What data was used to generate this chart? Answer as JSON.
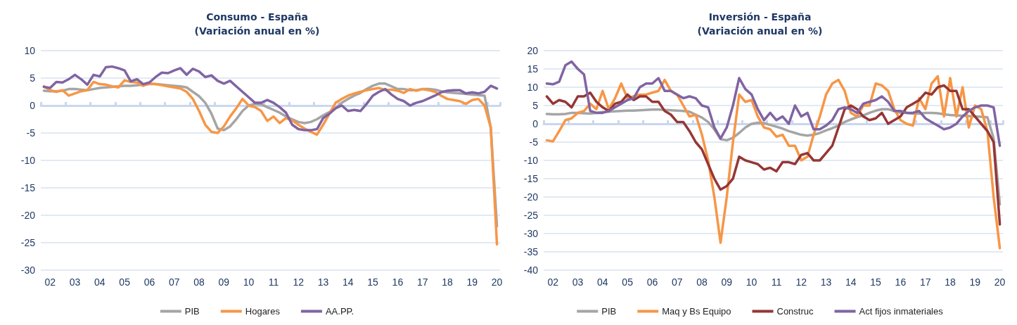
{
  "chart_data": [
    {
      "type": "line",
      "title": "Consumo - España",
      "subtitle": "(Variación anual en %)",
      "categories": [
        null,
        "02",
        null,
        null,
        null,
        "03",
        null,
        null,
        null,
        "04",
        null,
        null,
        null,
        "05",
        null,
        null,
        null,
        "06",
        null,
        null,
        null,
        "07",
        null,
        null,
        null,
        "08",
        null,
        null,
        null,
        "09",
        null,
        null,
        null,
        "10",
        null,
        null,
        null,
        "11",
        null,
        null,
        null,
        "12",
        null,
        null,
        null,
        "13",
        null,
        null,
        null,
        "14",
        null,
        null,
        null,
        "15",
        null,
        null,
        null,
        "16",
        null,
        null,
        null,
        "17",
        null,
        null,
        null,
        "18",
        null,
        null,
        null,
        "19",
        null,
        null,
        null,
        "20"
      ],
      "series": [
        {
          "name": "PIB",
          "color": "#a5a5a5",
          "values": [
            2.7,
            2.6,
            2.6,
            2.7,
            3.0,
            3.0,
            2.9,
            2.8,
            3.0,
            3.2,
            3.3,
            3.4,
            3.5,
            3.6,
            3.6,
            3.7,
            3.8,
            3.9,
            3.9,
            3.8,
            3.7,
            3.6,
            3.5,
            3.3,
            2.5,
            1.7,
            0.5,
            -1.5,
            -4.2,
            -4.5,
            -3.8,
            -2.5,
            -1.0,
            0,
            0.3,
            0.2,
            -0.3,
            -0.8,
            -1.3,
            -2.0,
            -2.5,
            -3.0,
            -3.2,
            -3.0,
            -2.5,
            -1.8,
            -1.2,
            -0.5,
            0.5,
            1.2,
            1.8,
            2.3,
            3.0,
            3.6,
            4.0,
            4.0,
            3.5,
            3.0,
            3.0,
            2.8,
            2.8,
            3.0,
            3.0,
            2.9,
            2.6,
            2.4,
            2.3,
            2.2,
            2.1,
            2.0,
            1.9,
            1.8,
            -4,
            -22
          ]
        },
        {
          "name": "Hogares",
          "color": "#f79646",
          "values": [
            3.5,
            2.8,
            2.5,
            2.8,
            1.8,
            2.2,
            2.6,
            2.8,
            4.3,
            3.9,
            3.8,
            3.5,
            3.3,
            4.6,
            4.3,
            4.2,
            3.6,
            4.0,
            3.9,
            3.7,
            3.5,
            3.3,
            3.1,
            2.5,
            1.2,
            -1.0,
            -3.5,
            -4.8,
            -5.0,
            -3.8,
            -2.0,
            -0.5,
            1.2,
            0,
            -0.3,
            -1.0,
            -2.8,
            -2.0,
            -3.2,
            -2.3,
            -2.7,
            -3.5,
            -4.2,
            -4.8,
            -5.3,
            -3.5,
            -1.5,
            0.5,
            1.2,
            1.8,
            2.2,
            2.5,
            2.8,
            3.0,
            3.2,
            2.8,
            2.9,
            2.7,
            2.3,
            3.0,
            2.7,
            3.0,
            2.8,
            2.5,
            1.8,
            1.2,
            1.0,
            0.8,
            0.3,
            1.0,
            1.2,
            0,
            -4,
            -25.3
          ]
        },
        {
          "name": "AA.PP.",
          "color": "#8064a2",
          "values": [
            3.4,
            3.2,
            4.3,
            4.2,
            4.8,
            5.6,
            4.8,
            3.8,
            5.6,
            5.3,
            7.0,
            7.1,
            6.8,
            6.4,
            4.4,
            4.8,
            3.9,
            4.2,
            5.2,
            6.0,
            5.9,
            6.4,
            6.8,
            5.6,
            6.7,
            6.2,
            5.2,
            5.5,
            4.5,
            4.0,
            4.5,
            3.5,
            2.5,
            1.5,
            0.5,
            0.5,
            1.0,
            0.5,
            -0.3,
            -1.3,
            -3.5,
            -4.3,
            -4.5,
            -4.5,
            -4.3,
            -2.3,
            -1.5,
            -0.5,
            0,
            -1.0,
            -0.8,
            -1.0,
            0.3,
            1.8,
            2.5,
            3.0,
            2.0,
            1.2,
            0.8,
            0,
            0.5,
            0.8,
            1.3,
            1.8,
            2.4,
            2.7,
            2.8,
            2.8,
            2.2,
            2.4,
            2.2,
            2.5,
            3.6,
            3.1
          ]
        }
      ],
      "ylim": [
        -30,
        10
      ],
      "yticks": [
        -30,
        -25,
        -20,
        -15,
        -10,
        -5,
        0,
        5,
        10
      ],
      "grid": "y",
      "legend": "bottom",
      "marker": "none",
      "line_style": "solid"
    },
    {
      "type": "line",
      "title": "Inversión - España",
      "subtitle": "(Variación anual en %)",
      "categories": [
        null,
        "02",
        null,
        null,
        null,
        "03",
        null,
        null,
        null,
        "04",
        null,
        null,
        null,
        "05",
        null,
        null,
        null,
        "06",
        null,
        null,
        null,
        "07",
        null,
        null,
        null,
        "08",
        null,
        null,
        null,
        "09",
        null,
        null,
        null,
        "10",
        null,
        null,
        null,
        "11",
        null,
        null,
        null,
        "12",
        null,
        null,
        null,
        "13",
        null,
        null,
        null,
        "14",
        null,
        null,
        null,
        "15",
        null,
        null,
        null,
        "16",
        null,
        null,
        null,
        "17",
        null,
        null,
        null,
        "18",
        null,
        null,
        null,
        "19",
        null,
        null,
        null,
        "20"
      ],
      "series": [
        {
          "name": "PIB",
          "color": "#a5a5a5",
          "values": [
            2.7,
            2.6,
            2.6,
            2.7,
            3.0,
            3.0,
            2.9,
            2.8,
            3.0,
            3.2,
            3.3,
            3.4,
            3.5,
            3.6,
            3.6,
            3.7,
            3.8,
            3.9,
            3.9,
            3.8,
            3.7,
            3.6,
            3.5,
            3.3,
            2.5,
            1.7,
            0.5,
            -1.5,
            -4.2,
            -4.5,
            -3.8,
            -2.5,
            -1.0,
            0,
            0.3,
            0.2,
            -0.3,
            -0.8,
            -1.3,
            -2.0,
            -2.5,
            -3.0,
            -3.2,
            -3.0,
            -2.5,
            -1.8,
            -1.2,
            -0.5,
            0.5,
            1.2,
            1.8,
            2.3,
            3.0,
            3.6,
            4.0,
            4.0,
            3.5,
            3.0,
            3.0,
            2.8,
            2.8,
            3.0,
            3.0,
            2.9,
            2.6,
            2.4,
            2.3,
            2.2,
            2.1,
            2.0,
            1.9,
            1.8,
            -4,
            -22
          ]
        },
        {
          "name": "Maq y Bs Equipo",
          "color": "#f79646",
          "values": [
            -4.5,
            -4.8,
            -2,
            1,
            1.5,
            3,
            3.5,
            5.5,
            4,
            9,
            4,
            7,
            11,
            7,
            7.5,
            8,
            8,
            8.5,
            9,
            12,
            9,
            8,
            5,
            2,
            2.5,
            -3,
            -10,
            -20,
            -32.5,
            -20,
            -5,
            8,
            6,
            6.5,
            2,
            -1,
            -1.5,
            -3.5,
            -3,
            -6,
            -6,
            -10,
            -9,
            -3,
            2,
            8,
            11,
            12,
            9,
            3,
            2,
            5,
            5,
            11,
            10.5,
            9,
            4,
            1,
            0,
            -0.5,
            7,
            4,
            11,
            13,
            2,
            12.5,
            2,
            10,
            -1,
            5,
            4,
            -2,
            -20,
            -34
          ]
        },
        {
          "name": "Construc",
          "color": "#953735",
          "values": [
            7.5,
            5.5,
            6.5,
            6,
            4.5,
            7.5,
            7.5,
            8.5,
            6,
            4.5,
            3.5,
            5.5,
            6,
            8,
            6.5,
            7.5,
            7.5,
            6,
            6,
            3.5,
            2.5,
            0.5,
            0.5,
            -2,
            -5,
            -7,
            -11,
            -15,
            -18,
            -17,
            -15,
            -9,
            -10,
            -10.5,
            -11,
            -12.5,
            -12,
            -13,
            -10.5,
            -10.5,
            -11,
            -8.5,
            -8,
            -10,
            -10,
            -8,
            -6,
            -1,
            4,
            5,
            4,
            2,
            1,
            1.5,
            3,
            0,
            1,
            2,
            4.5,
            5.5,
            6.5,
            8.5,
            8,
            10,
            10.5,
            9,
            9,
            4,
            4,
            2,
            0,
            -2,
            -5,
            -27.5
          ]
        },
        {
          "name": "Act fijos inmateriales",
          "color": "#8064a2",
          "values": [
            11,
            10.8,
            11.5,
            16,
            17,
            15,
            13.5,
            3.5,
            3,
            3,
            3.5,
            4.5,
            5.5,
            6.5,
            7,
            10,
            11,
            11,
            12.5,
            9,
            9,
            8,
            7,
            7.5,
            7,
            5,
            4.5,
            -1,
            -4,
            -1,
            5,
            12.5,
            9.5,
            8,
            4,
            1,
            3,
            1,
            2,
            0,
            5,
            2,
            3,
            -1.5,
            -1.5,
            -0.5,
            1,
            4,
            4.5,
            4,
            3,
            5.5,
            6,
            6.5,
            7.5,
            6,
            3.5,
            3.5,
            3,
            3,
            3.5,
            1.5,
            0.5,
            -0.5,
            -1.5,
            -1,
            0,
            2,
            3.5,
            4.5,
            5,
            5,
            4.5,
            -6
          ]
        }
      ],
      "ylim": [
        -40,
        20
      ],
      "yticks": [
        -40,
        -35,
        -30,
        -25,
        -20,
        -15,
        -10,
        -5,
        0,
        5,
        10,
        15,
        20
      ],
      "grid": "y",
      "legend": "bottom",
      "marker": "none",
      "line_style": "solid"
    }
  ]
}
